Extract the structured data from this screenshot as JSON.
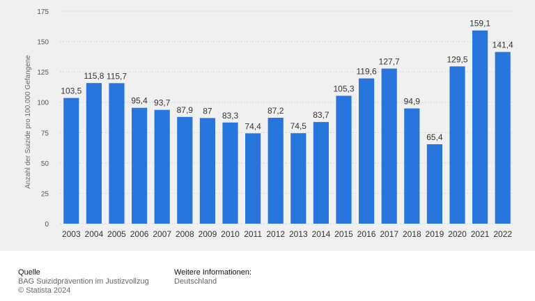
{
  "chart_data": {
    "type": "bar",
    "categories": [
      "2003",
      "2004",
      "2005",
      "2006",
      "2007",
      "2008",
      "2009",
      "2010",
      "2011",
      "2012",
      "2013",
      "2014",
      "2015",
      "2016",
      "2017",
      "2018",
      "2019",
      "2020",
      "2021",
      "2022"
    ],
    "values": [
      103.5,
      115.8,
      115.7,
      95.4,
      93.7,
      87.9,
      87,
      83.3,
      74.4,
      87.2,
      74.5,
      83.7,
      105.3,
      119.6,
      127.7,
      94.9,
      65.4,
      129.5,
      159.1,
      141.4
    ],
    "value_labels": [
      "103,5",
      "115,8",
      "115,7",
      "95,4",
      "93,7",
      "87,9",
      "87",
      "83,3",
      "74,4",
      "87,2",
      "74,5",
      "83,7",
      "105,3",
      "119,6",
      "127,7",
      "94,9",
      "65,4",
      "129,5",
      "159,1",
      "141,4"
    ],
    "ylabel": "Anzahl der Suizide pro 100.000 Gefangene",
    "ylim": [
      0,
      175
    ],
    "yticks": [
      "0",
      "25",
      "50",
      "75",
      "100",
      "125",
      "150",
      "175"
    ],
    "grid": true,
    "bar_color": "#2876dd"
  },
  "footer": {
    "source_title": "Quelle",
    "source_line1": "BAG Suizidprävention im Justizvollzug",
    "source_line2": "© Statista 2024",
    "info_title": "Weitere Informationen:",
    "info_line1": "Deutschland"
  }
}
